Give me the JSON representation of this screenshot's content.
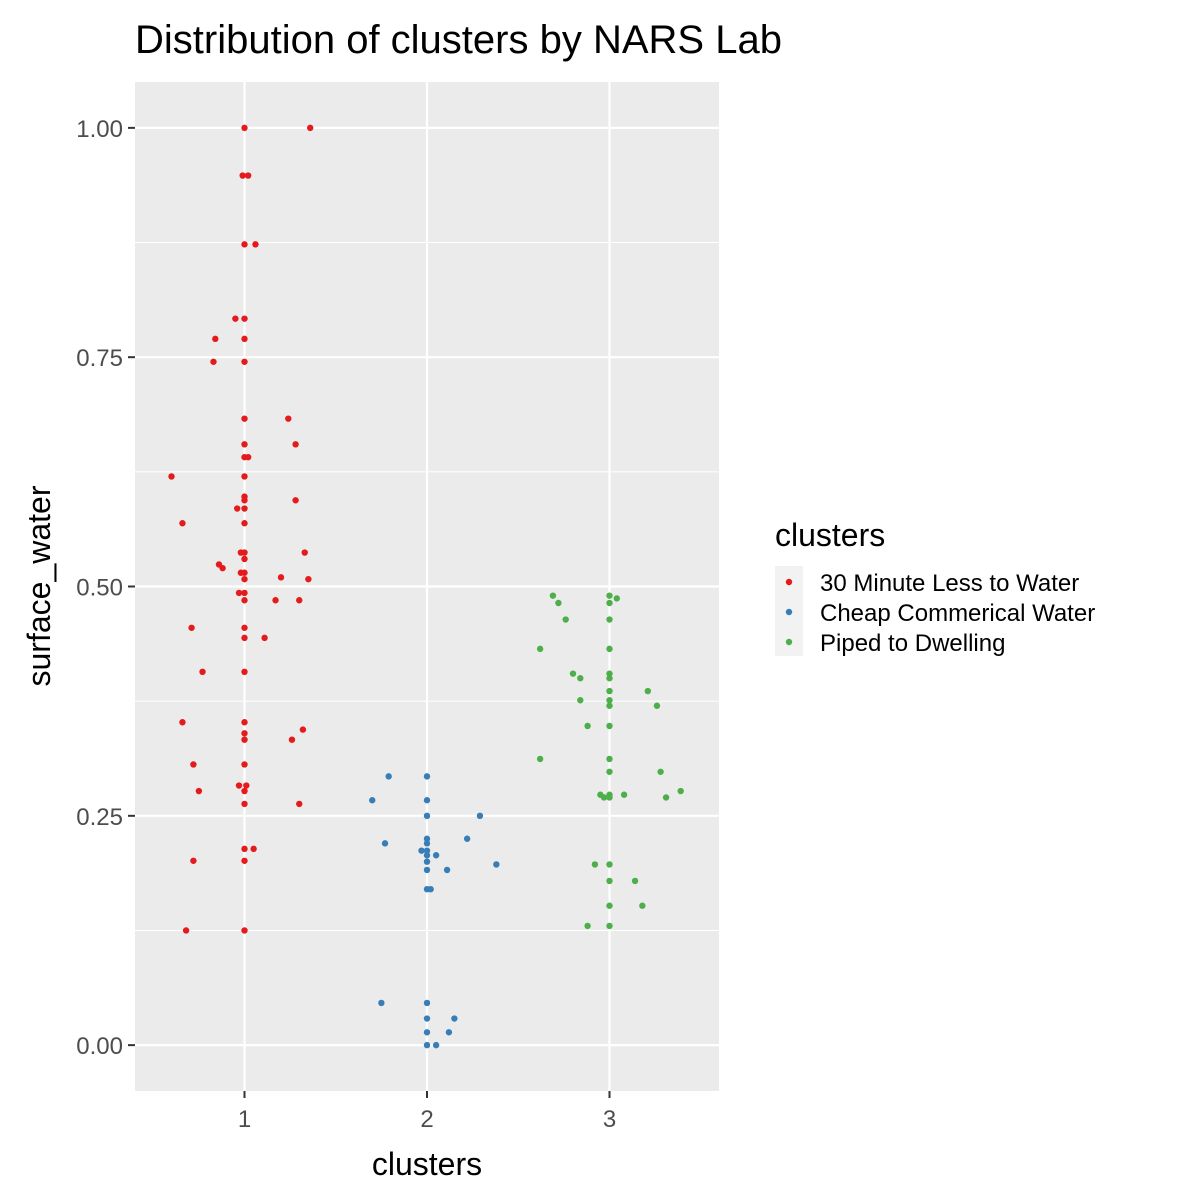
{
  "chart_data": {
    "type": "scatter",
    "title": "Distribution of clusters by NARS Lab",
    "xlabel": "clusters",
    "ylabel": "surface_water",
    "xlim": [
      0.4,
      3.6
    ],
    "ylim": [
      -0.05,
      1.05
    ],
    "x_ticks": [
      "1",
      "2",
      "3"
    ],
    "y_ticks": [
      "0.00",
      "0.25",
      "0.50",
      "0.75",
      "1.00"
    ],
    "grid": true,
    "legend": {
      "title": "clusters",
      "placement": "right",
      "entries": [
        "30 Minute Less to Water",
        "Cheap Commerical Water",
        "Piped to Dwelling"
      ]
    },
    "series": [
      {
        "name": "30 Minute Less to Water",
        "color": "#e41a1c",
        "points": [
          [
            1.0,
            1.0
          ],
          [
            1.36,
            1.0
          ],
          [
            0.99,
            0.948
          ],
          [
            1.02,
            0.948
          ],
          [
            1.0,
            0.873
          ],
          [
            1.06,
            0.873
          ],
          [
            0.95,
            0.792
          ],
          [
            1.0,
            0.792
          ],
          [
            0.84,
            0.77
          ],
          [
            1.0,
            0.77
          ],
          [
            0.83,
            0.745
          ],
          [
            1.0,
            0.745
          ],
          [
            1.0,
            0.683
          ],
          [
            1.24,
            0.683
          ],
          [
            1.0,
            0.655
          ],
          [
            1.28,
            0.655
          ],
          [
            1.0,
            0.641
          ],
          [
            1.02,
            0.641
          ],
          [
            0.6,
            0.62
          ],
          [
            1.0,
            0.62
          ],
          [
            1.0,
            0.598
          ],
          [
            1.0,
            0.594
          ],
          [
            1.28,
            0.594
          ],
          [
            0.96,
            0.585
          ],
          [
            1.0,
            0.585
          ],
          [
            0.66,
            0.569
          ],
          [
            1.0,
            0.569
          ],
          [
            0.98,
            0.537
          ],
          [
            1.0,
            0.537
          ],
          [
            1.33,
            0.537
          ],
          [
            1.0,
            0.53
          ],
          [
            0.86,
            0.524
          ],
          [
            0.88,
            0.52
          ],
          [
            0.98,
            0.515
          ],
          [
            1.0,
            0.515
          ],
          [
            1.0,
            0.508
          ],
          [
            1.2,
            0.51
          ],
          [
            1.35,
            0.508
          ],
          [
            0.97,
            0.493
          ],
          [
            1.0,
            0.493
          ],
          [
            1.0,
            0.485
          ],
          [
            1.17,
            0.485
          ],
          [
            1.3,
            0.485
          ],
          [
            0.71,
            0.455
          ],
          [
            1.0,
            0.455
          ],
          [
            1.0,
            0.444
          ],
          [
            1.11,
            0.444
          ],
          [
            0.77,
            0.407
          ],
          [
            1.0,
            0.407
          ],
          [
            0.66,
            0.352
          ],
          [
            1.0,
            0.352
          ],
          [
            1.32,
            0.344
          ],
          [
            1.0,
            0.34
          ],
          [
            1.26,
            0.333
          ],
          [
            1.0,
            0.333
          ],
          [
            0.72,
            0.306
          ],
          [
            1.0,
            0.306
          ],
          [
            0.97,
            0.283
          ],
          [
            1.01,
            0.283
          ],
          [
            0.75,
            0.277
          ],
          [
            1.0,
            0.277
          ],
          [
            1.0,
            0.263
          ],
          [
            1.3,
            0.263
          ],
          [
            1.0,
            0.214
          ],
          [
            1.05,
            0.214
          ],
          [
            0.72,
            0.201
          ],
          [
            1.0,
            0.201
          ],
          [
            0.68,
            0.125
          ],
          [
            1.0,
            0.125
          ]
        ]
      },
      {
        "name": "Cheap Commerical Water",
        "color": "#377eb8",
        "points": [
          [
            1.79,
            0.293
          ],
          [
            2.0,
            0.293
          ],
          [
            1.7,
            0.267
          ],
          [
            2.0,
            0.267
          ],
          [
            2.0,
            0.25
          ],
          [
            2.29,
            0.25
          ],
          [
            2.0,
            0.225
          ],
          [
            2.22,
            0.225
          ],
          [
            1.77,
            0.22
          ],
          [
            2.0,
            0.22
          ],
          [
            1.97,
            0.212
          ],
          [
            2.0,
            0.212
          ],
          [
            2.0,
            0.207
          ],
          [
            2.05,
            0.207
          ],
          [
            2.0,
            0.2
          ],
          [
            2.38,
            0.197
          ],
          [
            2.0,
            0.191
          ],
          [
            2.11,
            0.191
          ],
          [
            2.0,
            0.17
          ],
          [
            2.02,
            0.17
          ],
          [
            1.75,
            0.046
          ],
          [
            2.0,
            0.046
          ],
          [
            2.15,
            0.029
          ],
          [
            2.0,
            0.029
          ],
          [
            2.0,
            0.014
          ],
          [
            2.12,
            0.014
          ],
          [
            2.0,
            0.0
          ],
          [
            2.05,
            0.0
          ]
        ]
      },
      {
        "name": "Piped to Dwelling",
        "color": "#4daf4a",
        "points": [
          [
            2.69,
            0.49
          ],
          [
            3.0,
            0.49
          ],
          [
            3.04,
            0.487
          ],
          [
            2.72,
            0.482
          ],
          [
            3.0,
            0.482
          ],
          [
            2.76,
            0.464
          ],
          [
            3.0,
            0.464
          ],
          [
            2.62,
            0.432
          ],
          [
            3.0,
            0.432
          ],
          [
            2.8,
            0.405
          ],
          [
            3.0,
            0.405
          ],
          [
            2.84,
            0.4
          ],
          [
            3.0,
            0.4
          ],
          [
            3.21,
            0.386
          ],
          [
            3.0,
            0.386
          ],
          [
            2.84,
            0.376
          ],
          [
            3.0,
            0.376
          ],
          [
            3.0,
            0.37
          ],
          [
            3.26,
            0.37
          ],
          [
            2.88,
            0.348
          ],
          [
            3.0,
            0.348
          ],
          [
            2.62,
            0.312
          ],
          [
            3.0,
            0.312
          ],
          [
            3.0,
            0.298
          ],
          [
            3.28,
            0.298
          ],
          [
            3.39,
            0.277
          ],
          [
            2.95,
            0.273
          ],
          [
            3.0,
            0.273
          ],
          [
            3.08,
            0.273
          ],
          [
            3.31,
            0.27
          ],
          [
            2.97,
            0.27
          ],
          [
            3.0,
            0.27
          ],
          [
            2.92,
            0.197
          ],
          [
            3.0,
            0.197
          ],
          [
            3.0,
            0.179
          ],
          [
            3.14,
            0.179
          ],
          [
            3.0,
            0.152
          ],
          [
            3.18,
            0.152
          ],
          [
            2.88,
            0.13
          ],
          [
            3.0,
            0.13
          ]
        ]
      }
    ]
  }
}
